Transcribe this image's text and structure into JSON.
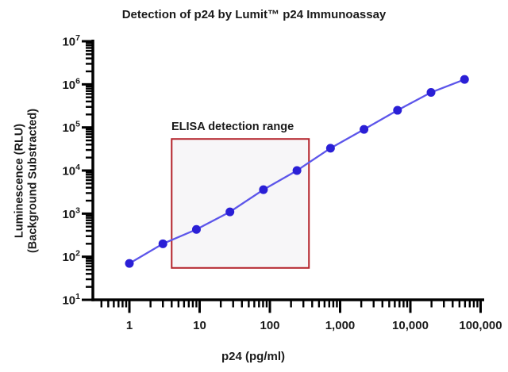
{
  "figure_title": "Detection of p24 by Lumit™ p24 Immunoassay",
  "chart_data": {
    "type": "scatter",
    "title": "Detection of p24 by Lumit™ p24 Immunoassay",
    "xlabel": "p24 (pg/ml)",
    "ylabel_line1": "Luminescence (RLU)",
    "ylabel_line2": "(Background Substracted)",
    "x_scale": "log",
    "y_scale": "log",
    "xlim": [
      0.35,
      130000
    ],
    "ylim": [
      10,
      10000000
    ],
    "grid": false,
    "legend": false,
    "series": [
      {
        "name": "p24-standard-curve",
        "x": [
          1,
          3,
          9,
          27,
          81,
          243,
          729,
          2187,
          6561,
          19683,
          59049
        ],
        "y": [
          70,
          200,
          430,
          1100,
          3600,
          10000,
          33000,
          90000,
          250000,
          650000,
          1300000
        ],
        "marker": "circle",
        "marker_color": "#2a1fd6",
        "line_color": "#5c55ea"
      }
    ],
    "x_ticks": [
      {
        "value": 1,
        "label": "1"
      },
      {
        "value": 10,
        "label": "10"
      },
      {
        "value": 100,
        "label": "100"
      },
      {
        "value": 1000,
        "label": "1,000"
      },
      {
        "value": 10000,
        "label": "10,000"
      },
      {
        "value": 100000,
        "label": "100,000"
      }
    ],
    "y_tick_base": "10",
    "y_ticks": [
      {
        "value": 10,
        "exp": "1"
      },
      {
        "value": 100,
        "exp": "2"
      },
      {
        "value": 1000,
        "exp": "3"
      },
      {
        "value": 10000,
        "exp": "4"
      },
      {
        "value": 100000,
        "exp": "5"
      },
      {
        "value": 1000000,
        "exp": "6"
      },
      {
        "value": 10000000,
        "exp": "7"
      }
    ],
    "annotation": {
      "label": "ELISA detection range",
      "x_range": [
        4,
        360
      ],
      "y_range": [
        55,
        54000
      ],
      "border_color": "#b4232b",
      "fill_color": "#f7f6f8"
    },
    "axis_color": "#000000",
    "text_color": "#1a1a1a",
    "background_color": "#ffffff"
  }
}
